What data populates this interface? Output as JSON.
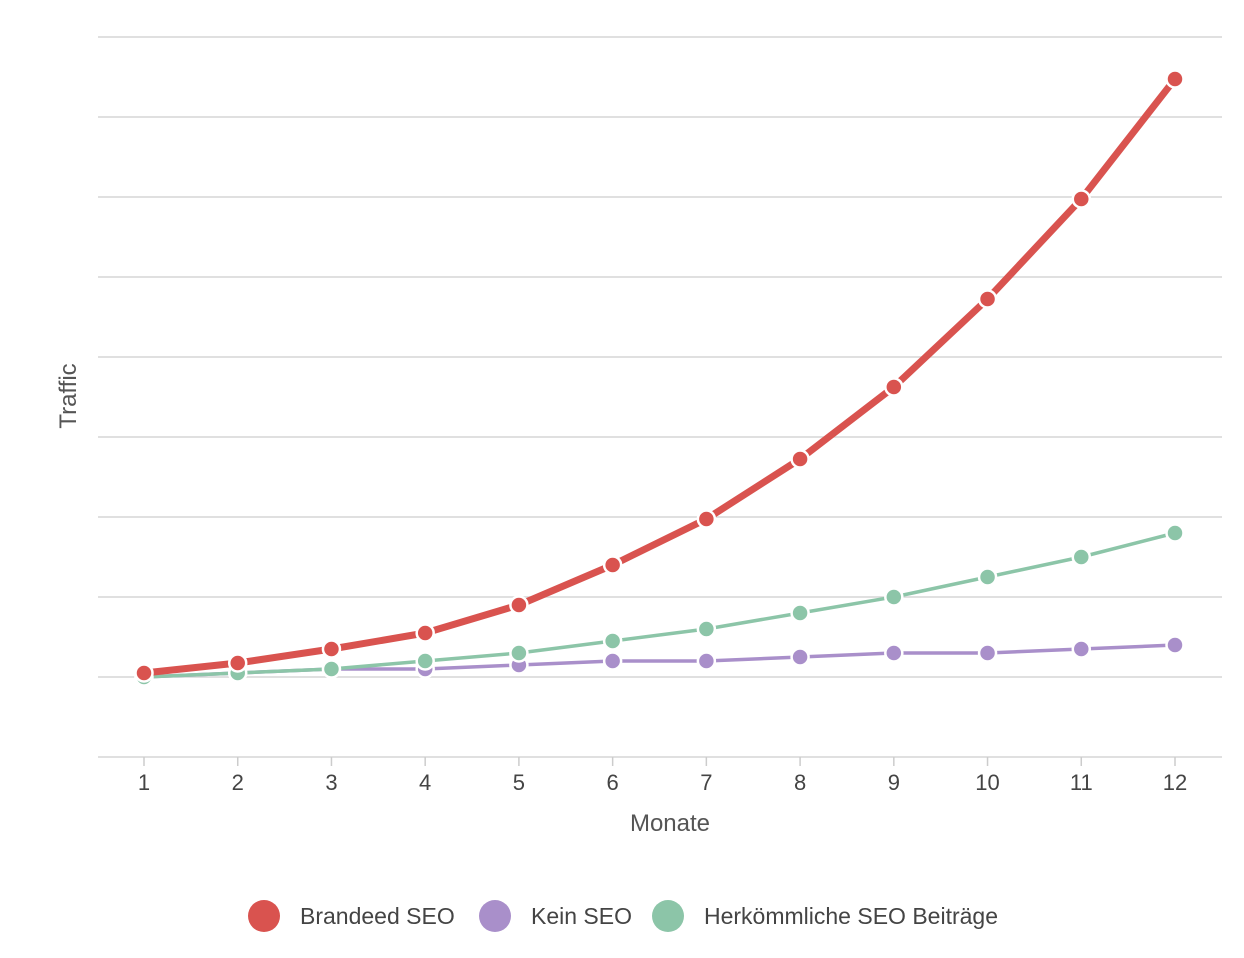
{
  "chart_data": {
    "type": "line",
    "title": "",
    "xlabel": "Monate",
    "ylabel": "Traffic",
    "categories": [
      "1",
      "2",
      "3",
      "4",
      "5",
      "6",
      "7",
      "8",
      "9",
      "10",
      "11",
      "12"
    ],
    "ylim": [
      -2,
      16
    ],
    "y_ticks": [
      -2,
      0,
      2,
      4,
      6,
      8,
      10,
      12,
      14,
      16
    ],
    "y_tick_labels_shown": false,
    "grid": true,
    "legend_position": "bottom",
    "series": [
      {
        "name": "Brandeed SEO",
        "color": "#d9534f",
        "values": [
          0.1,
          0.35,
          0.7,
          1.1,
          1.8,
          2.8,
          3.95,
          5.45,
          7.25,
          9.45,
          11.95,
          14.95
        ]
      },
      {
        "name": "Kein SEO",
        "color": "#a98fca",
        "values": [
          0.0,
          0.1,
          0.2,
          0.2,
          0.3,
          0.4,
          0.4,
          0.5,
          0.6,
          0.6,
          0.7,
          0.8
        ]
      },
      {
        "name": "Herkömmliche SEO Beiträge",
        "color": "#8cc5a8",
        "values": [
          0.0,
          0.1,
          0.2,
          0.4,
          0.6,
          0.9,
          1.2,
          1.6,
          2.0,
          2.5,
          3.0,
          3.6
        ]
      }
    ]
  }
}
